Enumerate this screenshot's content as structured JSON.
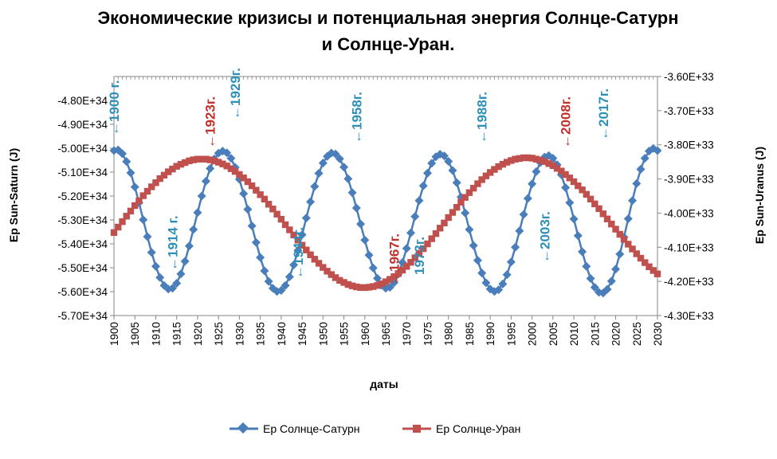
{
  "chart_data": {
    "type": "line",
    "title_line1": "Экономические кризисы и потенциальная энергия Солнце-Сатурн",
    "title_line2": "и Солнце-Уран.",
    "xlabel": "даты",
    "ylabel_left": "Ep Sun-Saturn (J)",
    "ylabel_right": "Ep Sun-Uranus (J)",
    "x_ticks": [
      "1900",
      "1905",
      "1910",
      "1915",
      "1920",
      "1925",
      "1930",
      "1935",
      "1940",
      "1945",
      "1950",
      "1955",
      "1960",
      "1965",
      "1970",
      "1975",
      "1980",
      "1985",
      "1990",
      "1995",
      "2000",
      "2005",
      "2010",
      "2015",
      "2020",
      "2025",
      "2030"
    ],
    "y_left_ticks": [
      "-4.80E+34",
      "-4.90E+34",
      "-5.00E+34",
      "-5.10E+34",
      "-5.20E+34",
      "-5.30E+34",
      "-5.40E+34",
      "-5.50E+34",
      "-5.60E+34",
      "-5.70E+34"
    ],
    "y_right_ticks": [
      "-3.60E+33",
      "-3.70E+33",
      "-3.80E+33",
      "-3.90E+33",
      "-4.00E+33",
      "-4.10E+33",
      "-4.20E+33",
      "-4.30E+33"
    ],
    "xlim": [
      1900,
      2030
    ],
    "ylim_left": [
      -5.7e+34,
      -4.7e+34
    ],
    "ylim_right": [
      -4.3e+33,
      -3.6e+33
    ],
    "legend_position": "bottom",
    "series": [
      {
        "name": "Ep Солнце-Сатурн",
        "axis": "left",
        "color": "#4a7ebb",
        "marker": "diamond",
        "x": [
          1900,
          1901,
          1902,
          1903,
          1904,
          1905,
          1906,
          1907,
          1908,
          1909,
          1910,
          1911,
          1912,
          1913,
          1914,
          1915,
          1916,
          1917,
          1918,
          1919,
          1920,
          1921,
          1922,
          1923,
          1924,
          1925,
          1926,
          1927,
          1928,
          1929,
          1930,
          1931,
          1932,
          1933,
          1934,
          1935,
          1936,
          1937,
          1938,
          1939,
          1940,
          1941,
          1942,
          1943,
          1944,
          1945,
          1946,
          1947,
          1948,
          1949,
          1950,
          1951,
          1952,
          1953,
          1954,
          1955,
          1956,
          1957,
          1958,
          1959,
          1960,
          1961,
          1962,
          1963,
          1964,
          1965,
          1966,
          1967,
          1968,
          1969,
          1970,
          1971,
          1972,
          1973,
          1974,
          1975,
          1976,
          1977,
          1978,
          1979,
          1980,
          1981,
          1982,
          1983,
          1984,
          1985,
          1986,
          1987,
          1988,
          1989,
          1990,
          1991,
          1992,
          1993,
          1994,
          1995,
          1996,
          1997,
          1998,
          1999,
          2000,
          2001,
          2002,
          2003,
          2004,
          2005,
          2006,
          2007,
          2008,
          2009,
          2010,
          2011,
          2012,
          2013,
          2014,
          2015,
          2016,
          2017,
          2018,
          2019,
          2020,
          2021,
          2022,
          2023,
          2024,
          2025,
          2026,
          2027,
          2028,
          2029,
          2030
        ],
        "values": [
          -5.01e+34,
          -5.007e+34,
          -5.023e+34,
          -5.056e+34,
          -5.103e+34,
          -5.162e+34,
          -5.228e+34,
          -5.299e+34,
          -5.37e+34,
          -5.436e+34,
          -5.494e+34,
          -5.541e+34,
          -5.574e+34,
          -5.589e+34,
          -5.586e+34,
          -5.565e+34,
          -5.526e+34,
          -5.473e+34,
          -5.409e+34,
          -5.34e+34,
          -5.269e+34,
          -5.2e+34,
          -5.138e+34,
          -5.085e+34,
          -5.045e+34,
          -5.021e+34,
          -5.012e+34,
          -5.019e+34,
          -5.042e+34,
          -5.08e+34,
          -5.13e+34,
          -5.19e+34,
          -5.256e+34,
          -5.325e+34,
          -5.394e+34,
          -5.457e+34,
          -5.513e+34,
          -5.557e+34,
          -5.586e+34,
          -5.599e+34,
          -5.595e+34,
          -5.574e+34,
          -5.538e+34,
          -5.488e+34,
          -5.428e+34,
          -5.362e+34,
          -5.292e+34,
          -5.224e+34,
          -5.16e+34,
          -5.105e+34,
          -5.062e+34,
          -5.034e+34,
          -5.02e+34,
          -5.024e+34,
          -5.044e+34,
          -5.079e+34,
          -5.128e+34,
          -5.186e+34,
          -5.25e+34,
          -5.317e+34,
          -5.384e+34,
          -5.447e+34,
          -5.501e+34,
          -5.544e+34,
          -5.573e+34,
          -5.586e+34,
          -5.582e+34,
          -5.562e+34,
          -5.527e+34,
          -5.478e+34,
          -5.419e+34,
          -5.354e+34,
          -5.286e+34,
          -5.219e+34,
          -5.157e+34,
          -5.104e+34,
          -5.063e+34,
          -5.036e+34,
          -5.025e+34,
          -5.032e+34,
          -5.055e+34,
          -5.093e+34,
          -5.144e+34,
          -5.204e+34,
          -5.271e+34,
          -5.34e+34,
          -5.407e+34,
          -5.469e+34,
          -5.522e+34,
          -5.563e+34,
          -5.589e+34,
          -5.599e+34,
          -5.592e+34,
          -5.568e+34,
          -5.529e+34,
          -5.476e+34,
          -5.414e+34,
          -5.346e+34,
          -5.277e+34,
          -5.21e+34,
          -5.149e+34,
          -5.098e+34,
          -5.06e+34,
          -5.037e+34,
          -5.031e+34,
          -5.042e+34,
          -5.069e+34,
          -5.111e+34,
          -5.165e+34,
          -5.228e+34,
          -5.296e+34,
          -5.366e+34,
          -5.433e+34,
          -5.494e+34,
          -5.545e+34,
          -5.582e+34,
          -5.603e+34,
          -5.606e+34,
          -5.59e+34,
          -5.556e+34,
          -5.506e+34,
          -5.443e+34,
          -5.372e+34,
          -5.295e+34,
          -5.219e+34,
          -5.148e+34,
          -5.088e+34,
          -5.042e+34,
          -5.012e+34,
          -5.001e+34,
          -5.01e+34
        ]
      },
      {
        "name": "Ep Солнце-Уран",
        "axis": "right",
        "color": "#c0504d",
        "marker": "square",
        "x": [
          1900,
          1901,
          1902,
          1903,
          1904,
          1905,
          1906,
          1907,
          1908,
          1909,
          1910,
          1911,
          1912,
          1913,
          1914,
          1915,
          1916,
          1917,
          1918,
          1919,
          1920,
          1921,
          1922,
          1923,
          1924,
          1925,
          1926,
          1927,
          1928,
          1929,
          1930,
          1931,
          1932,
          1933,
          1934,
          1935,
          1936,
          1937,
          1938,
          1939,
          1940,
          1941,
          1942,
          1943,
          1944,
          1945,
          1946,
          1947,
          1948,
          1949,
          1950,
          1951,
          1952,
          1953,
          1954,
          1955,
          1956,
          1957,
          1958,
          1959,
          1960,
          1961,
          1962,
          1963,
          1964,
          1965,
          1966,
          1967,
          1968,
          1969,
          1970,
          1971,
          1972,
          1973,
          1974,
          1975,
          1976,
          1977,
          1978,
          1979,
          1980,
          1981,
          1982,
          1983,
          1984,
          1985,
          1986,
          1987,
          1988,
          1989,
          1990,
          1991,
          1992,
          1993,
          1994,
          1995,
          1996,
          1997,
          1998,
          1999,
          2000,
          2001,
          2002,
          2003,
          2004,
          2005,
          2006,
          2007,
          2008,
          2009,
          2010,
          2011,
          2012,
          2013,
          2014,
          2015,
          2016,
          2017,
          2018,
          2019,
          2020,
          2021,
          2022,
          2023,
          2024,
          2025,
          2026,
          2027,
          2028,
          2029,
          2030
        ],
        "values": [
          -4.057e+33,
          -4.041e+33,
          -4.025e+33,
          -4.009e+33,
          -3.994e+33,
          -3.978e+33,
          -3.964e+33,
          -3.949e+33,
          -3.936e+33,
          -3.923e+33,
          -3.911e+33,
          -3.899e+33,
          -3.889e+33,
          -3.879e+33,
          -3.871e+33,
          -3.863e+33,
          -3.857e+33,
          -3.852e+33,
          -3.847e+33,
          -3.844e+33,
          -3.842e+33,
          -3.842e+33,
          -3.842e+33,
          -3.844e+33,
          -3.847e+33,
          -3.851e+33,
          -3.856e+33,
          -3.862e+33,
          -3.87e+33,
          -3.878e+33,
          -3.887e+33,
          -3.897e+33,
          -3.908e+33,
          -3.92e+33,
          -3.933e+33,
          -3.946e+33,
          -3.959e+33,
          -3.974e+33,
          -3.988e+33,
          -4.003e+33,
          -4.018e+33,
          -4.034e+33,
          -4.049e+33,
          -4.064e+33,
          -4.079e+33,
          -4.094e+33,
          -4.108e+33,
          -4.122e+33,
          -4.135e+33,
          -4.147e+33,
          -4.159e+33,
          -4.17e+33,
          -4.18e+33,
          -4.189e+33,
          -4.197e+33,
          -4.203e+33,
          -4.209e+33,
          -4.213e+33,
          -4.216e+33,
          -4.218e+33,
          -4.218e+33,
          -4.217e+33,
          -4.215e+33,
          -4.212e+33,
          -4.207e+33,
          -4.201e+33,
          -4.194e+33,
          -4.186e+33,
          -4.177e+33,
          -4.167e+33,
          -4.156e+33,
          -4.144e+33,
          -4.131e+33,
          -4.118e+33,
          -4.104e+33,
          -4.09e+33,
          -4.075e+33,
          -4.06e+33,
          -4.044e+33,
          -4.029e+33,
          -4.013e+33,
          -3.998e+33,
          -3.983e+33,
          -3.968e+33,
          -3.954e+33,
          -3.94e+33,
          -3.927e+33,
          -3.914e+33,
          -3.902e+33,
          -3.891e+33,
          -3.881e+33,
          -3.872e+33,
          -3.864e+33,
          -3.857e+33,
          -3.851e+33,
          -3.846e+33,
          -3.842e+33,
          -3.84e+33,
          -3.838e+33,
          -3.838e+33,
          -3.839e+33,
          -3.842e+33,
          -3.845e+33,
          -3.849e+33,
          -3.855e+33,
          -3.861e+33,
          -3.869e+33,
          -3.877e+33,
          -3.887e+33,
          -3.897e+33,
          -3.908e+33,
          -3.92e+33,
          -3.932e+33,
          -3.945e+33,
          -3.959e+33,
          -3.973e+33,
          -3.987e+33,
          -4.002e+33,
          -4.017e+33,
          -4.032e+33,
          -4.047e+33,
          -4.062e+33,
          -4.077e+33,
          -4.091e+33,
          -4.105e+33,
          -4.119e+33,
          -4.132e+33,
          -4.145e+33,
          -4.157e+33,
          -4.168e+33,
          -4.178e+33
        ]
      }
    ],
    "annotations": [
      {
        "text": "←1900 г.",
        "x": 1900,
        "color": "#2e8fb8"
      },
      {
        "text": "←1923г.",
        "x": 1923,
        "color": "#c0302d"
      },
      {
        "text": "←1929г.",
        "x": 1929,
        "color": "#2e8fb8"
      },
      {
        "text": "←1958г.",
        "x": 1958,
        "color": "#2e8fb8"
      },
      {
        "text": "←1988г.",
        "x": 1988,
        "color": "#2e8fb8"
      },
      {
        "text": "←2008г.",
        "x": 2008,
        "color": "#c0302d"
      },
      {
        "text": "←2017г.",
        "x": 2017,
        "color": "#2e8fb8"
      },
      {
        "text": "←1914 г.",
        "x": 1914,
        "color": "#2e8fb8"
      },
      {
        "text": "←1944г.",
        "x": 1944,
        "color": "#2e8fb8"
      },
      {
        "text": "←1967г.",
        "x": 1967,
        "color": "#c0302d"
      },
      {
        "text": "1973г.",
        "x": 1973,
        "color": "#2e8fb8"
      },
      {
        "text": "←2003г.",
        "x": 2003,
        "color": "#2e8fb8"
      }
    ]
  }
}
